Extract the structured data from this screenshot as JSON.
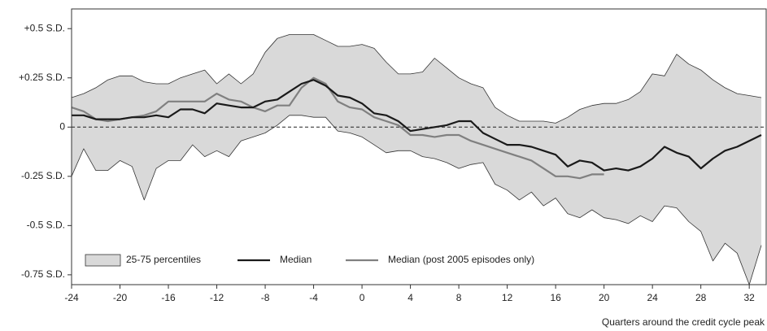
{
  "chart_data": {
    "type": "line",
    "x_label": "Quarters around the credit cycle peak",
    "x": [
      -24,
      -23,
      -22,
      -21,
      -20,
      -19,
      -18,
      -17,
      -16,
      -15,
      -14,
      -13,
      -12,
      -11,
      -10,
      -9,
      -8,
      -7,
      -6,
      -5,
      -4,
      -3,
      -2,
      -1,
      0,
      1,
      2,
      3,
      4,
      5,
      6,
      7,
      8,
      9,
      10,
      11,
      12,
      13,
      14,
      15,
      16,
      17,
      18,
      19,
      20,
      21,
      22,
      23,
      24,
      25,
      26,
      27,
      28,
      29,
      30,
      31,
      32,
      33
    ],
    "band": {
      "name": "25-75 percentiles",
      "color": "#d9d9d9",
      "upper": [
        0.15,
        0.17,
        0.2,
        0.24,
        0.26,
        0.26,
        0.23,
        0.22,
        0.22,
        0.25,
        0.27,
        0.29,
        0.22,
        0.27,
        0.22,
        0.27,
        0.38,
        0.45,
        0.47,
        0.47,
        0.47,
        0.44,
        0.41,
        0.41,
        0.42,
        0.4,
        0.33,
        0.27,
        0.27,
        0.28,
        0.35,
        0.3,
        0.25,
        0.22,
        0.2,
        0.1,
        0.06,
        0.03,
        0.03,
        0.03,
        0.02,
        0.05,
        0.09,
        0.11,
        0.12,
        0.12,
        0.14,
        0.18,
        0.27,
        0.26,
        0.37,
        0.32,
        0.29,
        0.24,
        0.2,
        0.17,
        0.16,
        0.15
      ],
      "lower": [
        -0.25,
        -0.11,
        -0.22,
        -0.22,
        -0.17,
        -0.2,
        -0.37,
        -0.21,
        -0.17,
        -0.17,
        -0.09,
        -0.15,
        -0.12,
        -0.15,
        -0.07,
        -0.05,
        -0.03,
        0.01,
        0.06,
        0.06,
        0.05,
        0.05,
        -0.02,
        -0.03,
        -0.05,
        -0.09,
        -0.13,
        -0.12,
        -0.12,
        -0.15,
        -0.16,
        -0.18,
        -0.21,
        -0.19,
        -0.18,
        -0.29,
        -0.32,
        -0.37,
        -0.33,
        -0.4,
        -0.36,
        -0.44,
        -0.46,
        -0.42,
        -0.46,
        -0.47,
        -0.49,
        -0.45,
        -0.48,
        -0.4,
        -0.41,
        -0.48,
        -0.53,
        -0.68,
        -0.59,
        -0.64,
        -0.8,
        -0.6
      ]
    },
    "series": [
      {
        "name": "Median",
        "color": "#1a1a1a",
        "values": [
          0.06,
          0.06,
          0.04,
          0.04,
          0.04,
          0.05,
          0.05,
          0.06,
          0.05,
          0.09,
          0.09,
          0.07,
          0.12,
          0.11,
          0.1,
          0.1,
          0.13,
          0.14,
          0.18,
          0.22,
          0.24,
          0.21,
          0.16,
          0.15,
          0.12,
          0.07,
          0.06,
          0.03,
          -0.02,
          -0.01,
          0,
          0.01,
          0.03,
          0.03,
          -0.03,
          -0.06,
          -0.09,
          -0.09,
          -0.1,
          -0.12,
          -0.14,
          -0.2,
          -0.17,
          -0.18,
          -0.22,
          -0.21,
          -0.22,
          -0.2,
          -0.16,
          -0.1,
          -0.13,
          -0.15,
          -0.21,
          -0.16,
          -0.12,
          -0.1,
          -0.07,
          -0.04
        ]
      },
      {
        "name": "Median (post 2005 episodes only)",
        "color": "#808080",
        "values": [
          0.1,
          0.08,
          0.04,
          0.03,
          0.04,
          0.05,
          0.06,
          0.08,
          0.13,
          0.13,
          0.13,
          0.13,
          0.17,
          0.14,
          0.13,
          0.1,
          0.08,
          0.11,
          0.11,
          0.2,
          0.25,
          0.22,
          0.13,
          0.1,
          0.09,
          0.05,
          0.03,
          0.01,
          -0.04,
          -0.04,
          -0.05,
          -0.04,
          -0.04,
          -0.07,
          -0.09,
          -0.11,
          -0.13,
          -0.15,
          -0.17,
          -0.21,
          -0.25,
          -0.25,
          -0.26,
          -0.24,
          -0.24,
          null,
          null,
          null,
          null,
          null,
          null,
          null,
          null,
          null,
          null,
          null,
          null,
          null
        ]
      }
    ],
    "xlim": [
      -24,
      33.4
    ],
    "xticks": [
      -24,
      -20,
      -16,
      -12,
      -8,
      -4,
      0,
      4,
      8,
      12,
      16,
      20,
      24,
      28,
      32
    ],
    "ylim": [
      -0.8,
      0.6
    ],
    "yticks": [
      {
        "value": 0.5,
        "label": "+0.5 S.D."
      },
      {
        "value": 0.25,
        "label": "+0.25 S.D."
      },
      0,
      {
        "value": -0.25,
        "label": "-0.25 S.D."
      },
      {
        "value": -0.5,
        "label": "-0.5 S.D."
      },
      {
        "value": -0.75,
        "label": "-0.75 S.D."
      }
    ],
    "zero_line": true
  }
}
